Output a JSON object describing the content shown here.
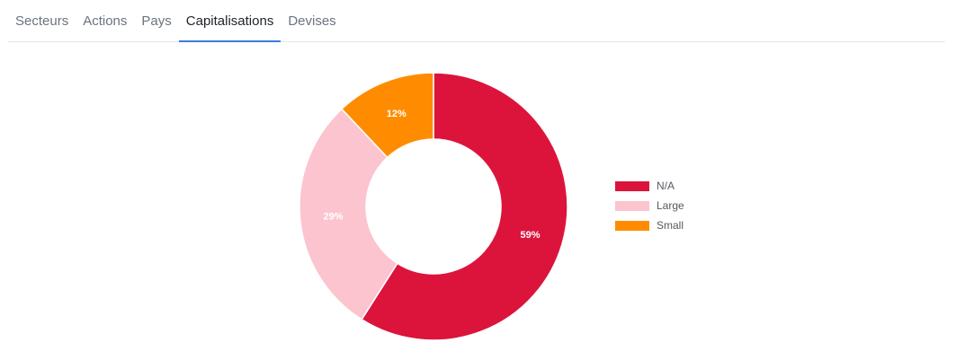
{
  "tabs": [
    {
      "label": "Secteurs",
      "active": false
    },
    {
      "label": "Actions",
      "active": false
    },
    {
      "label": "Pays",
      "active": false
    },
    {
      "label": "Capitalisations",
      "active": true
    },
    {
      "label": "Devises",
      "active": false
    }
  ],
  "colors": {
    "tab_underline": "#3b7ddd"
  },
  "chart_data": {
    "type": "pie",
    "donut": true,
    "title": "",
    "categories": [
      "N/A",
      "Large",
      "Small"
    ],
    "values": [
      59,
      29,
      12
    ],
    "labels": [
      "59%",
      "29%",
      "12%"
    ],
    "colors": [
      "#dc143c",
      "#fbc4cf",
      "#ff8c00"
    ],
    "legend": "right",
    "start_angle_deg": 0
  }
}
